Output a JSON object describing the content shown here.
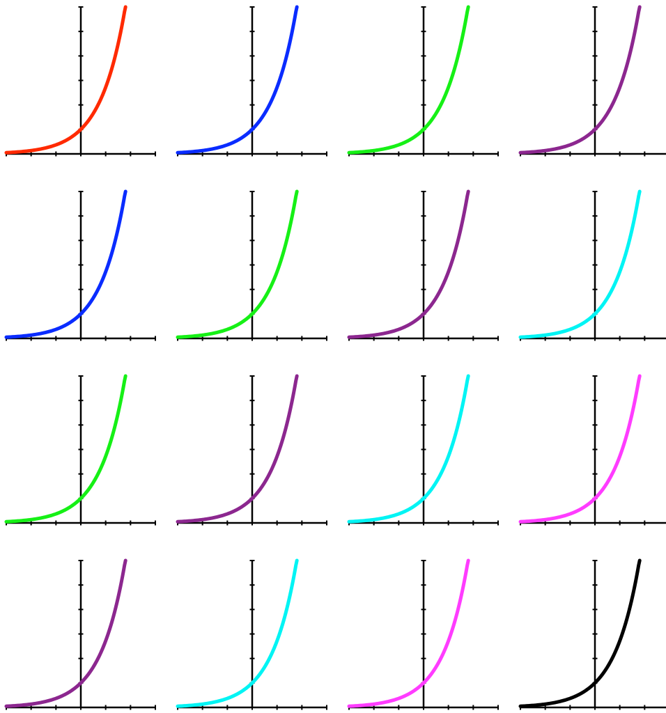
{
  "chart_data": {
    "type": "line",
    "layout": {
      "rows": 4,
      "cols": 4
    },
    "title": "",
    "xlabel": "",
    "ylabel": "",
    "grid": false,
    "function": "exponential",
    "xlim": [
      -3,
      3
    ],
    "ylim": [
      0,
      6
    ],
    "x_ticks": [
      -3,
      -2,
      -1,
      0,
      1,
      2,
      3
    ],
    "y_ticks": [
      0,
      1,
      2,
      3,
      4,
      5,
      6
    ],
    "series_x": [
      -3.0,
      -2.5,
      -2.0,
      -1.5,
      -1.0,
      -0.5,
      0.0,
      0.5,
      1.0,
      1.5,
      1.8
    ],
    "series_y": [
      0.05,
      0.09,
      0.15,
      0.24,
      0.41,
      0.71,
      1.0,
      1.64,
      2.72,
      4.48,
      6.0
    ],
    "panel_colors": [
      "#ff2a00",
      "#0a2cff",
      "#16f016",
      "#8c278f",
      "#0a2cff",
      "#16f016",
      "#8c278f",
      "#00f4f4",
      "#16f016",
      "#8c278f",
      "#00f4f4",
      "#ff3cff",
      "#8c278f",
      "#00f4f4",
      "#ff3cff",
      "#000000"
    ]
  }
}
